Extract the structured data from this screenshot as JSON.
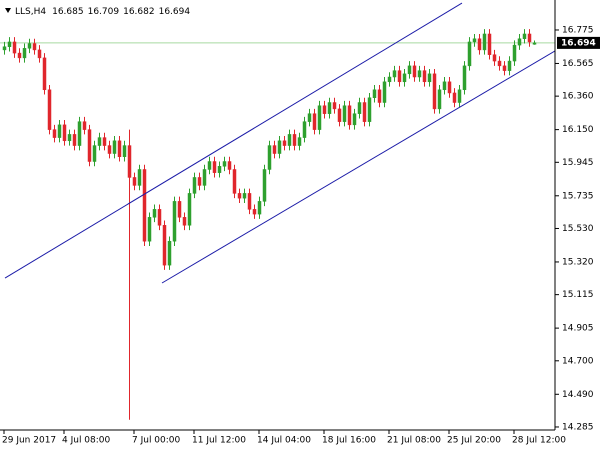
{
  "chart_data": {
    "type": "candlestick",
    "symbol": "LLS,H4",
    "categories": [
      "29 Jun 2017",
      null,
      null,
      null,
      null,
      null,
      null,
      null,
      null,
      null,
      null,
      null,
      "4 Jul 08:00",
      null,
      null,
      null,
      null,
      null,
      null,
      null,
      null,
      null,
      null,
      null,
      null,
      null,
      "7 Jul 00:00",
      null,
      null,
      null,
      null,
      null,
      null,
      null,
      null,
      null,
      null,
      null,
      "11 Jul 12:00",
      null,
      null,
      null,
      null,
      null,
      null,
      null,
      null,
      null,
      null,
      null,
      null,
      "14 Jul 04:00",
      null,
      null,
      null,
      null,
      null,
      null,
      null,
      null,
      null,
      null,
      null,
      null,
      "18 Jul 16:00",
      null,
      null,
      null,
      null,
      null,
      null,
      null,
      null,
      null,
      null,
      null,
      null,
      "21 Jul 08:00",
      null,
      null,
      null,
      null,
      null,
      null,
      null,
      null,
      null,
      null,
      null,
      "25 Jul 20:00",
      null,
      null,
      null,
      null,
      null,
      null,
      null,
      null,
      null,
      null,
      null,
      null,
      "28 Jul 12:00",
      null,
      null,
      null,
      null
    ],
    "open": [
      16.65,
      16.67,
      16.7,
      16.63,
      16.6,
      16.66,
      16.69,
      16.65,
      16.6,
      16.4,
      16.15,
      16.1,
      16.18,
      16.08,
      16.12,
      16.05,
      16.2,
      16.15,
      15.95,
      16.05,
      16.1,
      16.05,
      16.0,
      16.08,
      15.98,
      16.05,
      15.85,
      15.8,
      15.9,
      15.45,
      15.6,
      15.65,
      15.55,
      15.3,
      15.45,
      15.7,
      15.6,
      15.55,
      15.75,
      15.85,
      15.8,
      15.9,
      15.95,
      15.88,
      15.92,
      15.95,
      15.9,
      15.75,
      15.72,
      15.75,
      15.65,
      15.62,
      15.7,
      15.9,
      16.05,
      16.0,
      16.08,
      16.05,
      16.12,
      16.05,
      16.1,
      16.2,
      16.25,
      16.15,
      16.3,
      16.25,
      16.32,
      16.28,
      16.2,
      16.3,
      16.18,
      16.25,
      16.32,
      16.2,
      16.35,
      16.4,
      16.32,
      16.45,
      16.48,
      16.52,
      16.45,
      16.5,
      16.55,
      16.48,
      16.52,
      16.45,
      16.5,
      16.28,
      16.4,
      16.45,
      16.38,
      16.32,
      16.4,
      16.55,
      16.7,
      16.72,
      16.65,
      16.75,
      16.62,
      16.58,
      16.55,
      16.52,
      16.58,
      16.68,
      16.72,
      16.75,
      16.685
    ],
    "high": [
      16.7,
      16.73,
      16.73,
      16.66,
      16.69,
      16.72,
      16.72,
      16.68,
      16.63,
      16.43,
      16.18,
      16.21,
      16.21,
      16.15,
      16.15,
      16.23,
      16.23,
      16.18,
      16.08,
      16.13,
      16.13,
      16.08,
      16.11,
      16.11,
      16.08,
      16.15,
      15.88,
      15.93,
      15.93,
      15.63,
      15.68,
      15.68,
      15.58,
      15.48,
      15.73,
      15.73,
      15.63,
      15.78,
      15.88,
      15.88,
      15.93,
      15.98,
      15.98,
      15.95,
      15.98,
      15.98,
      15.93,
      15.78,
      15.78,
      15.78,
      15.68,
      15.73,
      15.93,
      16.08,
      16.08,
      16.11,
      16.11,
      16.15,
      16.15,
      16.13,
      16.23,
      16.28,
      16.28,
      16.33,
      16.33,
      16.35,
      16.35,
      16.31,
      16.33,
      16.33,
      16.28,
      16.35,
      16.35,
      16.38,
      16.43,
      16.43,
      16.48,
      16.51,
      16.55,
      16.55,
      16.53,
      16.58,
      16.58,
      16.55,
      16.55,
      16.53,
      16.53,
      16.43,
      16.48,
      16.48,
      16.41,
      16.43,
      16.58,
      16.73,
      16.75,
      16.75,
      16.78,
      16.78,
      16.65,
      16.61,
      16.58,
      16.61,
      16.71,
      16.75,
      16.78,
      16.78,
      16.709
    ],
    "low": [
      16.62,
      16.64,
      16.6,
      16.57,
      16.57,
      16.63,
      16.62,
      16.57,
      16.37,
      16.12,
      16.07,
      16.07,
      16.05,
      16.05,
      16.02,
      16.02,
      16.12,
      15.92,
      15.92,
      16.02,
      16.02,
      15.97,
      15.97,
      15.95,
      15.95,
      14.33,
      15.77,
      15.77,
      15.42,
      15.42,
      15.57,
      15.52,
      15.27,
      15.27,
      15.42,
      15.57,
      15.52,
      15.52,
      15.72,
      15.77,
      15.77,
      15.87,
      15.85,
      15.85,
      15.89,
      15.87,
      15.72,
      15.69,
      15.69,
      15.62,
      15.59,
      15.59,
      15.67,
      15.87,
      15.97,
      15.97,
      16.02,
      16.02,
      16.02,
      16.02,
      16.07,
      16.17,
      16.12,
      16.12,
      16.22,
      16.22,
      16.25,
      16.17,
      16.17,
      16.15,
      16.15,
      16.22,
      16.17,
      16.17,
      16.32,
      16.29,
      16.29,
      16.42,
      16.45,
      16.42,
      16.42,
      16.47,
      16.45,
      16.45,
      16.42,
      16.42,
      16.25,
      16.25,
      16.37,
      16.35,
      16.29,
      16.29,
      16.37,
      16.52,
      16.67,
      16.62,
      16.62,
      16.59,
      16.55,
      16.52,
      16.49,
      16.49,
      16.55,
      16.65,
      16.69,
      16.67,
      16.682
    ],
    "close": [
      16.67,
      16.7,
      16.63,
      16.6,
      16.66,
      16.69,
      16.65,
      16.6,
      16.4,
      16.15,
      16.1,
      16.18,
      16.08,
      16.12,
      16.05,
      16.2,
      16.15,
      15.95,
      16.05,
      16.1,
      16.05,
      16.0,
      16.08,
      15.98,
      16.05,
      15.85,
      15.8,
      15.9,
      15.45,
      15.6,
      15.65,
      15.55,
      15.3,
      15.45,
      15.7,
      15.6,
      15.55,
      15.75,
      15.85,
      15.8,
      15.9,
      15.95,
      15.88,
      15.92,
      15.95,
      15.9,
      15.75,
      15.72,
      15.75,
      15.65,
      15.62,
      15.7,
      15.9,
      16.05,
      16.0,
      16.08,
      16.05,
      16.12,
      16.05,
      16.1,
      16.2,
      16.25,
      16.15,
      16.3,
      16.25,
      16.32,
      16.28,
      16.2,
      16.3,
      16.18,
      16.25,
      16.32,
      16.2,
      16.35,
      16.4,
      16.32,
      16.45,
      16.48,
      16.52,
      16.45,
      16.5,
      16.55,
      16.48,
      16.52,
      16.45,
      16.5,
      16.28,
      16.4,
      16.45,
      16.38,
      16.32,
      16.4,
      16.55,
      16.7,
      16.72,
      16.65,
      16.75,
      16.62,
      16.58,
      16.55,
      16.52,
      16.58,
      16.68,
      16.72,
      16.75,
      16.7,
      16.694
    ],
    "up_color": "#2ea02e",
    "down_color": "#e0262c",
    "price_line_color": "#a6d9a0",
    "channel_color": "#1c1ca8",
    "ylim": [
      14.266,
      16.963
    ],
    "yticks": [
      16.775,
      16.565,
      {
        "value": 16.36,
        "label": "16.360"
      },
      {
        "value": 16.15,
        "label": "16.150"
      },
      15.945,
      15.735,
      {
        "value": 15.53,
        "label": "15.530"
      },
      {
        "value": 15.32,
        "label": "15.320"
      },
      15.115,
      14.905,
      {
        "value": 14.7,
        "label": "14.700"
      },
      {
        "value": 14.49,
        "label": "14.490"
      },
      14.285
    ],
    "trendlines": [
      {
        "x": [
          0.2,
          91.6
        ],
        "y": [
          15.219,
          16.944
        ]
      },
      {
        "x": [
          31.6,
          111.2
        ],
        "y": [
          15.188,
          16.662
        ]
      }
    ]
  }
}
